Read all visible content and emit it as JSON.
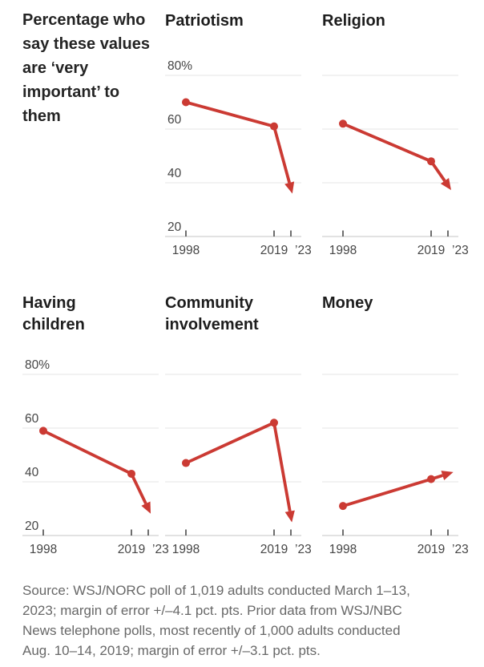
{
  "page": {
    "intro": "Percentage who say these values are ‘very important’ to them",
    "source": "Source: WSJ/NORC poll of 1,019 adults conducted March 1–13, 2023; margin of error +/–4.1 pct. pts. Prior data from WSJ/NBC News telephone polls, most recently of 1,000 adults conducted Aug. 10–14, 2019; margin of error +/–3.1 pct. pts."
  },
  "chart_data": {
    "type": "line",
    "x": [
      1998,
      2019,
      2023
    ],
    "x_tick_labels": [
      "1998",
      "2019",
      "’23"
    ],
    "ylim": [
      20,
      80
    ],
    "y_ticks": [
      80,
      60,
      40,
      20
    ],
    "y_tick_labels": [
      "80%",
      "60",
      "40",
      "20"
    ],
    "unit": "percent",
    "legend": "none",
    "grid": "horizontal",
    "accent_color": "#cb3a33",
    "grid_color": "#e4e4e4",
    "axis_color": "#c6c6c6",
    "tick_color": "#4a4a4a",
    "arrow_note": "last segment drawn as arrow indicating 2023 direction",
    "charts": [
      {
        "title": "Patriotism",
        "values": [
          70,
          61,
          38
        ],
        "show_y_labels": true
      },
      {
        "title": "Religion",
        "values": [
          62,
          48,
          39
        ],
        "show_y_labels": false
      },
      {
        "title": "Having children",
        "values": [
          59,
          43,
          30
        ],
        "show_y_labels": true
      },
      {
        "title": "Community involvement",
        "values": [
          47,
          62,
          27
        ],
        "show_y_labels": false
      },
      {
        "title": "Money",
        "values": [
          31,
          41,
          43
        ],
        "show_y_labels": false
      }
    ]
  }
}
